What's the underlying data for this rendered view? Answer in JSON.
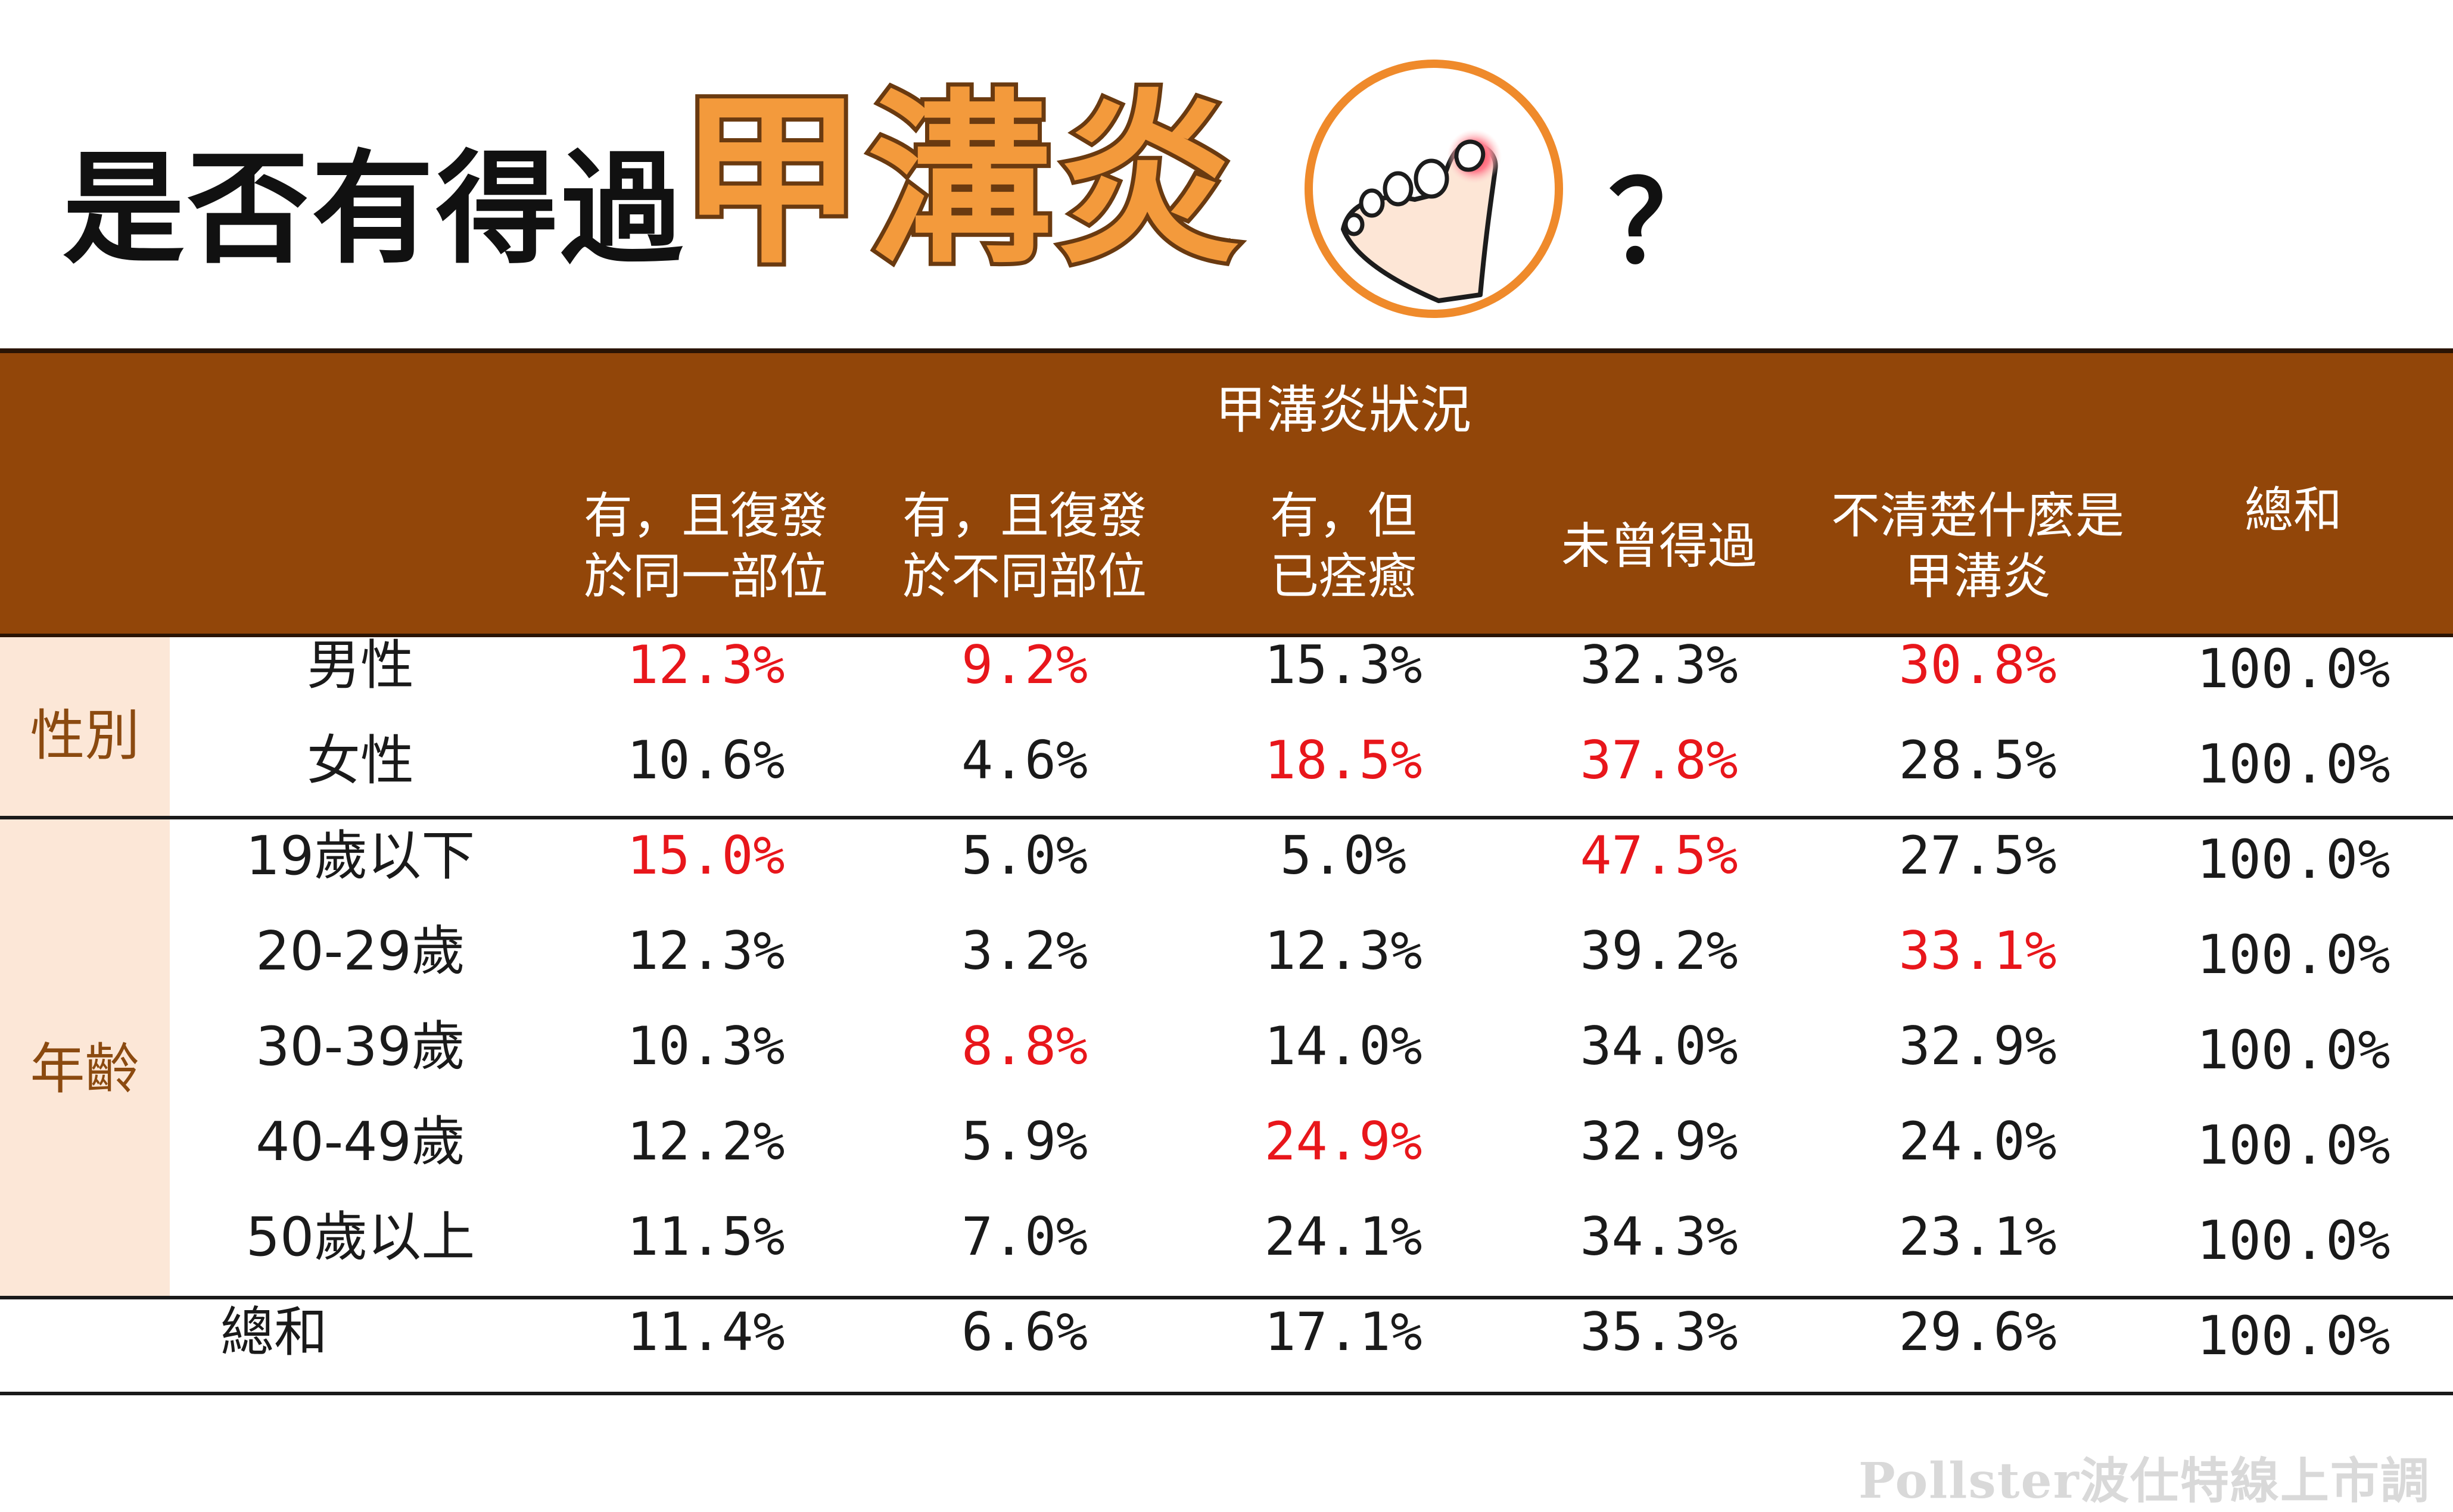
{
  "title": {
    "prefix": "是否有得過",
    "highlight": "甲溝炎",
    "suffix": "？"
  },
  "icon": "inflamed-toe-icon",
  "colors": {
    "header_bg": "#924609",
    "side_band": "#fce7d7",
    "side_text": "#8b4a10",
    "highlight_text": "#e8161b",
    "title_accent": "#f39a3c"
  },
  "table": {
    "group_header": "甲溝炎狀況",
    "columns": [
      [
        "有，且復發",
        "於同一部位"
      ],
      [
        "有，且復發",
        "於不同部位"
      ],
      [
        "有，但",
        "已痊癒"
      ],
      [
        "未曾得過"
      ],
      [
        "不清楚什麼是",
        "甲溝炎"
      ],
      [
        "總和"
      ]
    ],
    "groups": [
      {
        "label": "性別"
      },
      {
        "label": "年齡"
      }
    ],
    "rows": [
      {
        "label": "男性",
        "values": [
          "12.3%",
          "9.2%",
          "15.3%",
          "32.3%",
          "30.8%",
          "100.0%"
        ]
      },
      {
        "label": "女性",
        "values": [
          "10.6%",
          "4.6%",
          "18.5%",
          "37.8%",
          "28.5%",
          "100.0%"
        ]
      },
      {
        "label": "19歲以下",
        "values": [
          "15.0%",
          "5.0%",
          "5.0%",
          "47.5%",
          "27.5%",
          "100.0%"
        ]
      },
      {
        "label": "20-29歲",
        "values": [
          "12.3%",
          "3.2%",
          "12.3%",
          "39.2%",
          "33.1%",
          "100.0%"
        ]
      },
      {
        "label": "30-39歲",
        "values": [
          "10.3%",
          "8.8%",
          "14.0%",
          "34.0%",
          "32.9%",
          "100.0%"
        ]
      },
      {
        "label": "40-49歲",
        "values": [
          "12.2%",
          "5.9%",
          "24.9%",
          "32.9%",
          "24.0%",
          "100.0%"
        ]
      },
      {
        "label": "50歲以上",
        "values": [
          "11.5%",
          "7.0%",
          "24.1%",
          "34.3%",
          "23.1%",
          "100.0%"
        ]
      },
      {
        "label": "總和",
        "values": [
          "11.4%",
          "6.6%",
          "17.1%",
          "35.3%",
          "29.6%",
          "100.0%"
        ]
      }
    ]
  },
  "chart_data": {
    "type": "table",
    "title": "是否有得過甲溝炎？",
    "group_header": "甲溝炎狀況",
    "columns": [
      "有，且復發於同一部位",
      "有，且復發於不同部位",
      "有，但已痊癒",
      "未曾得過",
      "不清楚什麼是甲溝炎",
      "總和"
    ],
    "row_groups": [
      {
        "name": "性別",
        "rows": [
          "男性",
          "女性"
        ]
      },
      {
        "name": "年齡",
        "rows": [
          "19歲以下",
          "20-29歲",
          "30-39歲",
          "40-49歲",
          "50歲以上"
        ]
      }
    ],
    "rows": [
      "男性",
      "女性",
      "19歲以下",
      "20-29歲",
      "30-39歲",
      "40-49歲",
      "50歲以上",
      "總和"
    ],
    "values": [
      [
        12.3,
        9.2,
        15.3,
        32.3,
        30.8,
        100.0
      ],
      [
        10.6,
        4.6,
        18.5,
        37.8,
        28.5,
        100.0
      ],
      [
        15.0,
        5.0,
        5.0,
        47.5,
        27.5,
        100.0
      ],
      [
        12.3,
        3.2,
        12.3,
        39.2,
        33.1,
        100.0
      ],
      [
        10.3,
        8.8,
        14.0,
        34.0,
        32.9,
        100.0
      ],
      [
        12.2,
        5.9,
        24.9,
        32.9,
        24.0,
        100.0
      ],
      [
        11.5,
        7.0,
        24.1,
        34.3,
        23.1,
        100.0
      ],
      [
        11.4,
        6.6,
        17.1,
        35.3,
        29.6,
        100.0
      ]
    ],
    "unit": "%",
    "highlighted": [
      [
        "男性",
        "有，且復發於同一部位"
      ],
      [
        "男性",
        "有，且復發於不同部位"
      ],
      [
        "男性",
        "不清楚什麼是甲溝炎"
      ],
      [
        "女性",
        "有，但已痊癒"
      ],
      [
        "女性",
        "未曾得過"
      ],
      [
        "19歲以下",
        "有，且復發於同一部位"
      ],
      [
        "19歲以下",
        "未曾得過"
      ],
      [
        "20-29歲",
        "不清楚什麼是甲溝炎"
      ],
      [
        "30-39歲",
        "有，且復發於不同部位"
      ],
      [
        "40-49歲",
        "有，但已痊癒"
      ]
    ]
  },
  "footer": {
    "watermark": "Pollster波仕特線上市調"
  }
}
